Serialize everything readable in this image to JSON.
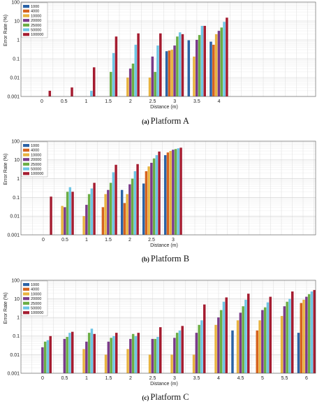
{
  "colors": [
    "#2a62a6",
    "#d6631f",
    "#e8b33f",
    "#7a3a8a",
    "#6cae45",
    "#6ec5e5",
    "#a51c30"
  ],
  "chart_data": [
    {
      "type": "bar",
      "caption_label": "(a)",
      "caption_text": "Platform A",
      "ylabel": "Error Rate (%)",
      "xlabel": "Distance (m)",
      "yscale": "log",
      "ylim": [
        0.001,
        100
      ],
      "yticks": [
        "0.001",
        "0.01",
        "0.1",
        "1",
        "10",
        "100"
      ],
      "categories": [
        "0",
        "0.5",
        "1",
        "1.5",
        "2",
        "2.5",
        "3",
        "3.5",
        "4"
      ],
      "legend": [
        "1000",
        "4000",
        "10000",
        "20000",
        "25000",
        "50000",
        "100000"
      ],
      "series": [
        {
          "name": "1000",
          "values": [
            null,
            null,
            null,
            null,
            null,
            null,
            0.25,
            0.95,
            0.8
          ]
        },
        {
          "name": "4000",
          "values": [
            null,
            null,
            null,
            null,
            null,
            null,
            0.27,
            null,
            0.55
          ]
        },
        {
          "name": "10000",
          "values": [
            null,
            null,
            null,
            null,
            0.01,
            0.01,
            0.3,
            0.13,
            2.0
          ]
        },
        {
          "name": "20000",
          "values": [
            null,
            null,
            null,
            null,
            0.03,
            0.13,
            0.5,
            1.0,
            3.0
          ]
        },
        {
          "name": "25000",
          "values": [
            null,
            null,
            null,
            0.02,
            0.055,
            0.02,
            1.5,
            1.8,
            4.5
          ]
        },
        {
          "name": "50000",
          "values": [
            null,
            null,
            0.002,
            0.2,
            0.55,
            0.5,
            2.5,
            5.5,
            9.0
          ]
        },
        {
          "name": "100000",
          "values": [
            0.002,
            0.003,
            0.035,
            1.5,
            2.2,
            2.2,
            2.0,
            5.5,
            15.0
          ]
        }
      ]
    },
    {
      "type": "bar",
      "caption_label": "(b)",
      "caption_text": "Platform B",
      "ylabel": "Error Rate (%)",
      "xlabel": "Distance (m)",
      "yscale": "log",
      "ylim": [
        0.001,
        100
      ],
      "yticks": [
        "0.001",
        "0.01",
        "0.1",
        "1",
        "10",
        "100"
      ],
      "categories": [
        "0",
        "0.5",
        "1",
        "1.5",
        "2",
        "2.5",
        "3"
      ],
      "legend": [
        "1000",
        "4000",
        "10000",
        "20000",
        "25000",
        "50000",
        "100000"
      ],
      "series": [
        {
          "name": "1000",
          "values": [
            null,
            null,
            null,
            null,
            0.25,
            0.55,
            18
          ]
        },
        {
          "name": "4000",
          "values": [
            null,
            null,
            null,
            0.03,
            0.05,
            2.5,
            25
          ]
        },
        {
          "name": "10000",
          "values": [
            null,
            0.035,
            0.01,
            0.15,
            0.15,
            4.5,
            30
          ]
        },
        {
          "name": "20000",
          "values": [
            null,
            0.03,
            0.04,
            0.25,
            0.5,
            7.0,
            35
          ]
        },
        {
          "name": "25000",
          "values": [
            null,
            0.2,
            0.15,
            0.6,
            1.0,
            12,
            38
          ]
        },
        {
          "name": "50000",
          "values": [
            null,
            0.35,
            0.3,
            2.2,
            2.5,
            18,
            42
          ]
        },
        {
          "name": "100000",
          "values": [
            0.11,
            0.2,
            0.6,
            5.5,
            6.0,
            28,
            45
          ]
        }
      ]
    },
    {
      "type": "bar",
      "caption_label": "(c)",
      "caption_text": "Platform C",
      "ylabel": "Error Rate (%)",
      "xlabel": "Distance (m)",
      "yscale": "log",
      "ylim": [
        0.001,
        100
      ],
      "yticks": [
        "0.001",
        "0.01",
        "0.1",
        "1",
        "10",
        "100"
      ],
      "categories": [
        "0",
        "0.5",
        "1",
        "1.5",
        "2",
        "2.5",
        "3",
        "3.5",
        "4",
        "4.5",
        "5",
        "5.5",
        "6"
      ],
      "legend": [
        "1000",
        "4000",
        "10000",
        "20000",
        "25000",
        "50000",
        "100000"
      ],
      "series": [
        {
          "name": "1000",
          "values": [
            null,
            null,
            null,
            null,
            null,
            null,
            null,
            null,
            null,
            0.2,
            null,
            null,
            0.15
          ]
        },
        {
          "name": "4000",
          "values": [
            null,
            null,
            null,
            null,
            null,
            null,
            null,
            null,
            null,
            null,
            0.2,
            null,
            6.0
          ]
        },
        {
          "name": "10000",
          "values": [
            null,
            null,
            0.02,
            0.01,
            0.02,
            0.01,
            0.01,
            0.01,
            0.4,
            0.7,
            0.7,
            1.2,
            9.0
          ]
        },
        {
          "name": "20000",
          "values": [
            0.025,
            0.07,
            0.05,
            0.05,
            0.07,
            0.07,
            0.08,
            0.15,
            1.0,
            1.8,
            2.5,
            4.0,
            13
          ]
        },
        {
          "name": "25000",
          "values": [
            0.05,
            0.09,
            0.15,
            0.08,
            0.13,
            0.07,
            0.15,
            0.4,
            2.5,
            4.0,
            3.5,
            7.0,
            18
          ]
        },
        {
          "name": "50000",
          "values": [
            0.06,
            0.15,
            0.25,
            0.1,
            0.1,
            0.09,
            0.2,
            0.7,
            7.0,
            9.0,
            6.5,
            10,
            25
          ]
        },
        {
          "name": "100000",
          "values": [
            0.1,
            0.17,
            0.13,
            0.15,
            0.15,
            0.3,
            0.35,
            5.0,
            12,
            19,
            13,
            25,
            30
          ]
        }
      ]
    }
  ]
}
